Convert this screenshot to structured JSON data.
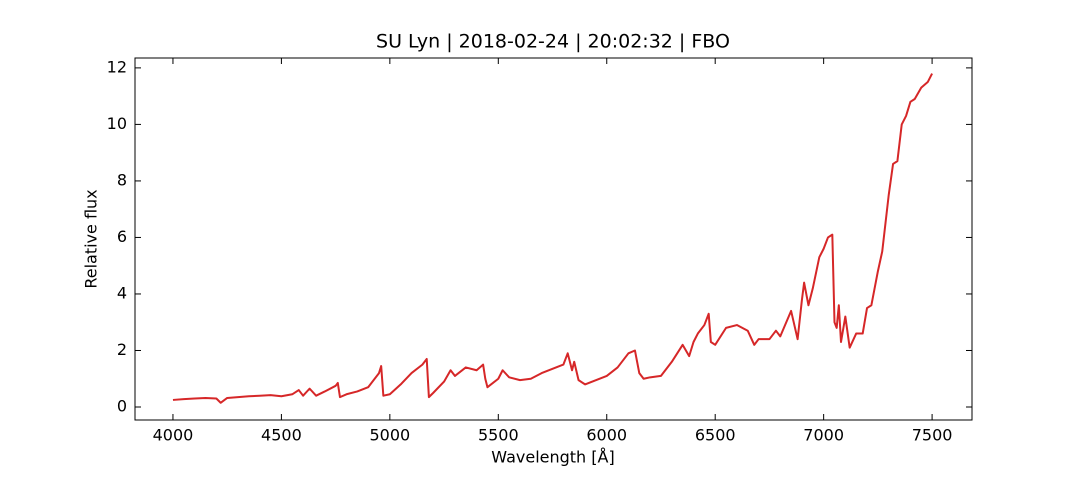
{
  "chart_data": {
    "type": "line",
    "title": "SU Lyn | 2018-02-24 | 20:02:32 | FBO",
    "x_label": "Wavelength [Å]",
    "y_label": "Relative flux",
    "xlim": [
      3825,
      7684
    ],
    "ylim": [
      -0.46,
      12.35
    ],
    "xticks": [
      4000,
      4500,
      5000,
      5500,
      6000,
      6500,
      7000,
      7500
    ],
    "yticks": [
      0,
      2,
      4,
      6,
      8,
      10,
      12
    ],
    "series": [
      {
        "color": "#d62728",
        "x": [
          4000,
          4050,
          4100,
          4150,
          4200,
          4220,
          4250,
          4300,
          4350,
          4400,
          4450,
          4500,
          4550,
          4580,
          4600,
          4630,
          4660,
          4700,
          4750,
          4760,
          4770,
          4800,
          4850,
          4900,
          4950,
          4960,
          4970,
          5000,
          5050,
          5100,
          5150,
          5170,
          5180,
          5200,
          5250,
          5280,
          5300,
          5350,
          5400,
          5430,
          5440,
          5450,
          5500,
          5520,
          5550,
          5600,
          5650,
          5700,
          5750,
          5800,
          5820,
          5840,
          5850,
          5870,
          5900,
          5950,
          6000,
          6050,
          6100,
          6130,
          6150,
          6170,
          6200,
          6250,
          6300,
          6350,
          6380,
          6400,
          6420,
          6450,
          6470,
          6480,
          6500,
          6550,
          6600,
          6650,
          6680,
          6700,
          6750,
          6780,
          6800,
          6850,
          6880,
          6900,
          6910,
          6930,
          6950,
          6980,
          7000,
          7020,
          7040,
          7050,
          7060,
          7070,
          7080,
          7100,
          7120,
          7150,
          7180,
          7200,
          7220,
          7250,
          7270,
          7300,
          7320,
          7340,
          7360,
          7380,
          7400,
          7420,
          7450,
          7480,
          7500
        ],
        "values": [
          0.25,
          0.28,
          0.3,
          0.32,
          0.3,
          0.15,
          0.32,
          0.35,
          0.38,
          0.4,
          0.42,
          0.38,
          0.45,
          0.6,
          0.4,
          0.65,
          0.4,
          0.55,
          0.75,
          0.85,
          0.35,
          0.45,
          0.55,
          0.7,
          1.2,
          1.45,
          0.4,
          0.45,
          0.8,
          1.2,
          1.5,
          1.7,
          0.35,
          0.5,
          0.9,
          1.3,
          1.1,
          1.4,
          1.3,
          1.5,
          1.0,
          0.7,
          1.0,
          1.3,
          1.05,
          0.95,
          1.0,
          1.2,
          1.35,
          1.5,
          1.9,
          1.3,
          1.6,
          0.95,
          0.8,
          0.95,
          1.1,
          1.4,
          1.9,
          2.0,
          1.2,
          1.0,
          1.05,
          1.1,
          1.6,
          2.2,
          1.8,
          2.3,
          2.6,
          2.9,
          3.3,
          2.3,
          2.2,
          2.8,
          2.9,
          2.7,
          2.2,
          2.4,
          2.4,
          2.7,
          2.5,
          3.4,
          2.4,
          3.8,
          4.4,
          3.6,
          4.2,
          5.3,
          5.6,
          6.0,
          6.1,
          3.0,
          2.8,
          3.6,
          2.3,
          3.2,
          2.1,
          2.6,
          2.6,
          3.5,
          3.6,
          4.8,
          5.5,
          7.5,
          8.6,
          8.7,
          10.0,
          10.3,
          10.8,
          10.9,
          11.3,
          11.5,
          11.8
        ]
      }
    ]
  }
}
